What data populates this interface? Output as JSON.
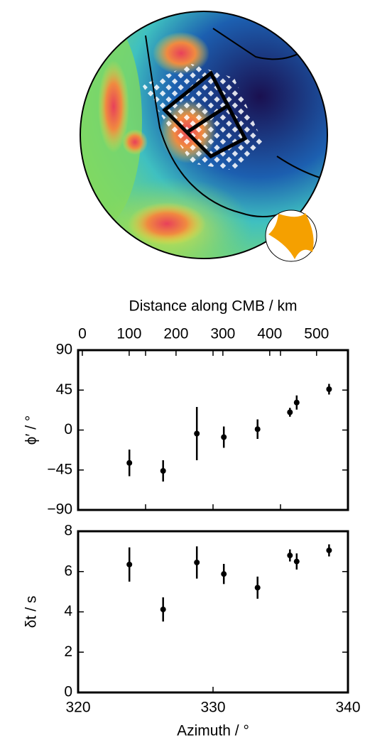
{
  "chart_data": [
    {
      "type": "scatter",
      "y_label": "ϕ′ / °",
      "x2_label": "Distance along CMB / km",
      "x2lim": [
        -9,
        567
      ],
      "x2ticks": [
        0,
        100,
        200,
        300,
        400,
        500
      ],
      "xlim": [
        320,
        340
      ],
      "xticks": [
        320,
        325,
        330,
        335,
        340
      ],
      "ylim": [
        -90,
        90
      ],
      "yticks": [
        {
          "value": -90,
          "label": "−90"
        },
        {
          "value": -45,
          "label": "−45"
        },
        0,
        45,
        90
      ],
      "color": "#000000",
      "x": [
        323.8,
        326.3,
        328.8,
        330.8,
        333.3,
        335.7,
        336.2,
        338.6
      ],
      "values": [
        -37,
        -46,
        -4,
        -8,
        1,
        20,
        31,
        46
      ],
      "errors": [
        15,
        12,
        30,
        12,
        11,
        5,
        8,
        6
      ]
    },
    {
      "type": "scatter",
      "y_label": "δt / s",
      "x_label": "Azimuth / °",
      "xlim": [
        320,
        340
      ],
      "xticks": [
        320,
        330,
        340
      ],
      "ylim": [
        0,
        8
      ],
      "yticks": [
        0,
        2,
        4,
        6,
        8
      ],
      "color": "#000000",
      "x": [
        323.8,
        326.3,
        328.8,
        330.8,
        333.3,
        335.7,
        336.2,
        338.6
      ],
      "values": [
        6.35,
        4.12,
        6.45,
        5.88,
        5.2,
        6.8,
        6.5,
        7.05
      ],
      "errors": [
        0.85,
        0.6,
        0.8,
        0.5,
        0.55,
        0.3,
        0.4,
        0.3
      ]
    }
  ]
}
